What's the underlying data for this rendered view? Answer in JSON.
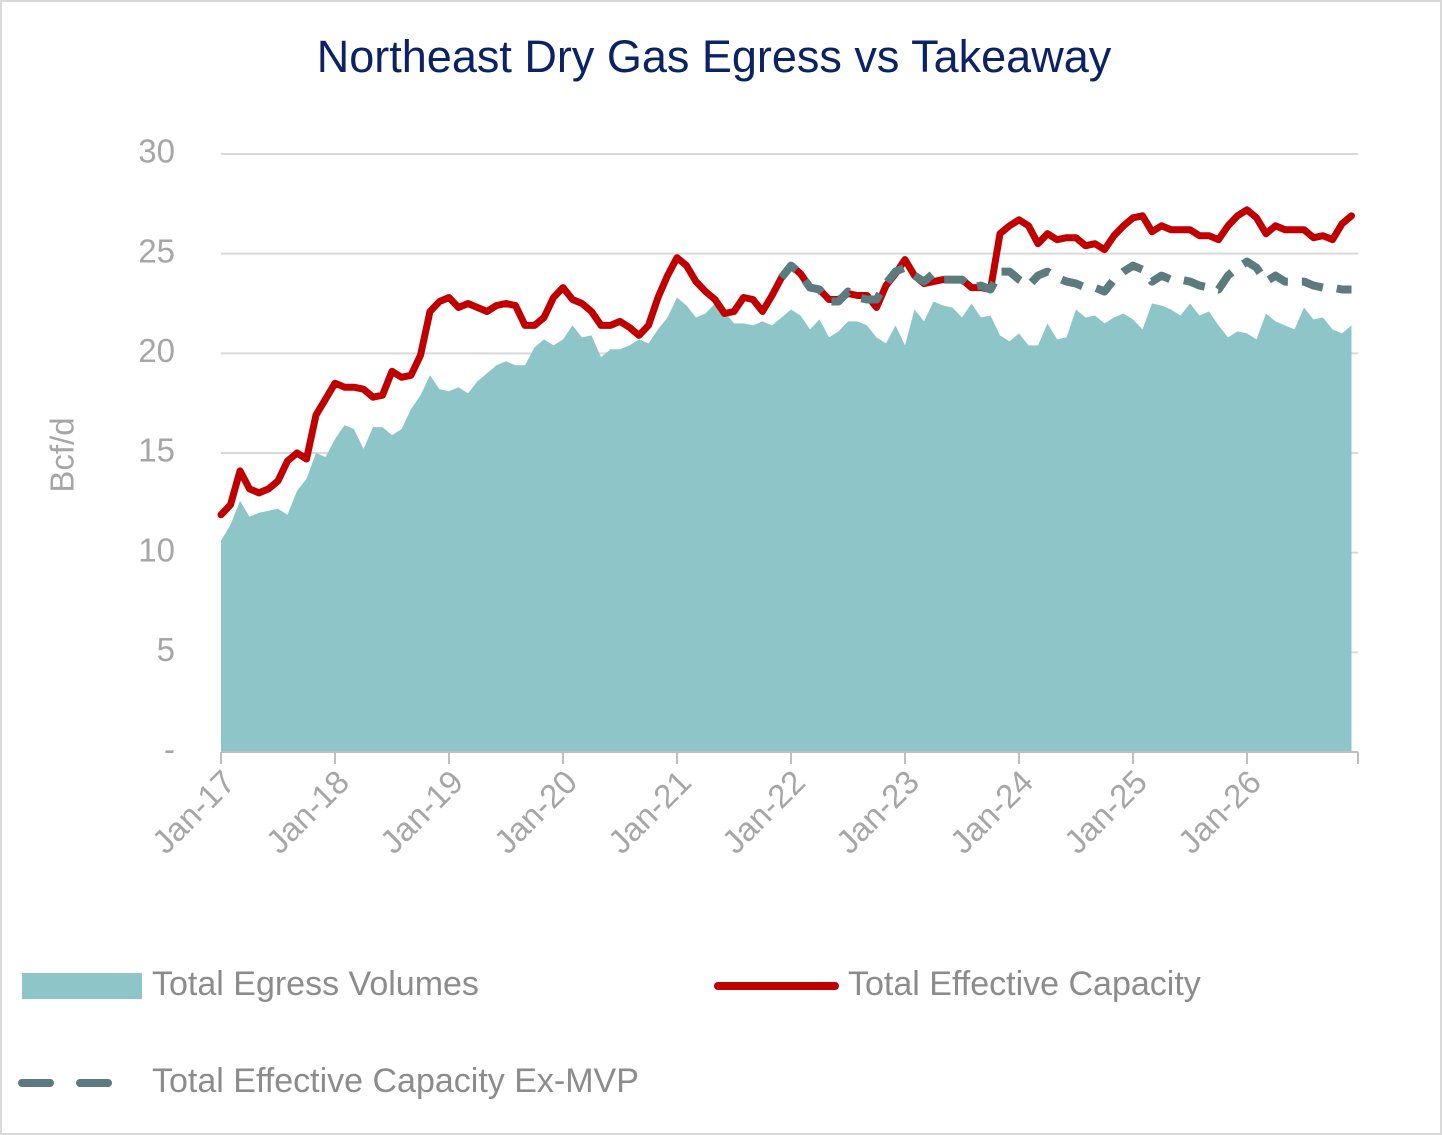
{
  "chart_data": {
    "type": "line",
    "title": "Northeast Dry Gas Egress vs Takeaway",
    "y_label": "Bcf/d",
    "categories": [
      "Jan-17",
      null,
      null,
      null,
      null,
      null,
      null,
      null,
      null,
      null,
      null,
      null,
      "Jan-18",
      null,
      null,
      null,
      null,
      null,
      null,
      null,
      null,
      null,
      null,
      null,
      "Jan-19",
      null,
      null,
      null,
      null,
      null,
      null,
      null,
      null,
      null,
      null,
      null,
      "Jan-20",
      null,
      null,
      null,
      null,
      null,
      null,
      null,
      null,
      null,
      null,
      null,
      "Jan-21",
      null,
      null,
      null,
      null,
      null,
      null,
      null,
      null,
      null,
      null,
      null,
      "Jan-22",
      null,
      null,
      null,
      null,
      null,
      null,
      null,
      null,
      null,
      null,
      null,
      "Jan-23",
      null,
      null,
      null,
      null,
      null,
      null,
      null,
      null,
      null,
      null,
      null,
      "Jan-24",
      null,
      null,
      null,
      null,
      null,
      null,
      null,
      null,
      null,
      null,
      null,
      "Jan-25",
      null,
      null,
      null,
      null,
      null,
      null,
      null,
      null,
      null,
      null,
      null,
      "Jan-26",
      null,
      null,
      null,
      null,
      null,
      null,
      null,
      null,
      null,
      null,
      null
    ],
    "ylim": [
      0,
      30
    ],
    "yticks": [
      {
        "value": 0,
        "label": "-"
      },
      5,
      10,
      15,
      20,
      25,
      30
    ],
    "grid": true,
    "series": [
      {
        "name": "Total Egress Volumes",
        "type": "area",
        "color": "#8ec5c8",
        "values": [
          10.6,
          11.4,
          12.6,
          11.8,
          12.0,
          12.1,
          12.2,
          11.9,
          13.1,
          13.7,
          15.0,
          14.8,
          15.7,
          16.4,
          16.2,
          15.2,
          16.3,
          16.3,
          15.9,
          16.2,
          17.2,
          17.9,
          18.9,
          18.2,
          18.1,
          18.3,
          18.0,
          18.6,
          19.0,
          19.4,
          19.6,
          19.4,
          19.4,
          20.3,
          20.7,
          20.4,
          20.7,
          21.4,
          20.8,
          20.9,
          19.8,
          20.2,
          20.2,
          20.4,
          20.7,
          20.5,
          21.2,
          21.8,
          22.8,
          22.4,
          21.8,
          22.0,
          22.5,
          22.1,
          21.5,
          21.5,
          21.4,
          21.6,
          21.4,
          21.8,
          22.2,
          21.9,
          21.2,
          21.7,
          20.8,
          21.1,
          21.6,
          21.6,
          21.4,
          20.8,
          20.5,
          21.4,
          20.4,
          22.2,
          21.6,
          22.6,
          22.4,
          22.3,
          21.8,
          22.5,
          21.8,
          21.9,
          20.9,
          20.6,
          21.0,
          20.4,
          20.4,
          21.5,
          20.7,
          20.8,
          22.2,
          21.8,
          21.9,
          21.5,
          21.8,
          22.0,
          21.7,
          21.2,
          22.5,
          22.4,
          22.2,
          21.9,
          22.5,
          21.9,
          22.1,
          21.4,
          20.8,
          21.1,
          21.0,
          20.7,
          22.0,
          21.6,
          21.4,
          21.2,
          22.3,
          21.7,
          21.8,
          21.2,
          21.0,
          21.4
        ]
      },
      {
        "name": "Total Effective Capacity",
        "type": "line",
        "color": "#c00000",
        "values": [
          11.9,
          12.4,
          14.1,
          13.2,
          13.0,
          13.2,
          13.6,
          14.6,
          15.0,
          14.7,
          16.9,
          17.7,
          18.5,
          18.3,
          18.3,
          18.2,
          17.8,
          17.9,
          19.1,
          18.8,
          18.9,
          19.9,
          22.1,
          22.6,
          22.8,
          22.3,
          22.5,
          22.3,
          22.1,
          22.4,
          22.5,
          22.4,
          21.4,
          21.4,
          21.8,
          22.8,
          23.3,
          22.7,
          22.5,
          22.1,
          21.4,
          21.4,
          21.6,
          21.3,
          20.9,
          21.4,
          22.8,
          23.9,
          24.8,
          24.4,
          23.6,
          23.1,
          22.7,
          22.0,
          22.1,
          22.8,
          22.7,
          22.1,
          22.9,
          23.8,
          24.4,
          24.0,
          23.3,
          23.2,
          22.7,
          22.7,
          23.0,
          22.9,
          22.9,
          22.3,
          23.4,
          24.0,
          24.7,
          23.9,
          23.5,
          23.6,
          23.7,
          23.7,
          23.7,
          23.3,
          23.3,
          23.2,
          26.0,
          26.4,
          26.7,
          26.4,
          25.5,
          26.0,
          25.7,
          25.8,
          25.8,
          25.4,
          25.5,
          25.2,
          25.9,
          26.4,
          26.8,
          26.9,
          26.1,
          26.4,
          26.2,
          26.2,
          26.2,
          25.9,
          25.9,
          25.7,
          26.4,
          26.9,
          27.2,
          26.8,
          26.0,
          26.4,
          26.2,
          26.2,
          26.2,
          25.8,
          25.9,
          25.7,
          26.5,
          26.9
        ]
      },
      {
        "name": "Total Effective Capacity Ex-MVP",
        "type": "line",
        "dash": "dashed",
        "color": "#5b7b7f",
        "values": [
          null,
          null,
          null,
          null,
          null,
          null,
          null,
          null,
          null,
          null,
          null,
          null,
          null,
          null,
          null,
          null,
          null,
          null,
          null,
          null,
          null,
          null,
          null,
          null,
          null,
          null,
          null,
          null,
          null,
          null,
          null,
          null,
          null,
          null,
          null,
          null,
          null,
          null,
          null,
          null,
          null,
          null,
          null,
          null,
          null,
          null,
          null,
          null,
          null,
          null,
          null,
          null,
          null,
          null,
          null,
          null,
          null,
          null,
          null,
          23.8,
          24.4,
          24.0,
          23.3,
          23.2,
          22.6,
          22.6,
          23.1,
          22.8,
          22.7,
          22.7,
          23.5,
          24.1,
          24.3,
          23.9,
          23.6,
          24.0,
          23.7,
          23.7,
          23.7,
          23.3,
          23.4,
          23.2,
          24.1,
          24.1,
          23.7,
          23.4,
          23.9,
          24.1,
          23.8,
          23.6,
          23.5,
          23.3,
          23.3,
          23.1,
          23.7,
          24.1,
          24.4,
          24.2,
          23.6,
          23.9,
          23.7,
          23.7,
          23.6,
          23.4,
          23.3,
          23.2,
          23.9,
          24.3,
          24.6,
          24.3,
          23.6,
          23.9,
          23.6,
          23.6,
          23.6,
          23.4,
          23.3,
          23.3,
          23.2,
          23.2
        ]
      }
    ]
  }
}
